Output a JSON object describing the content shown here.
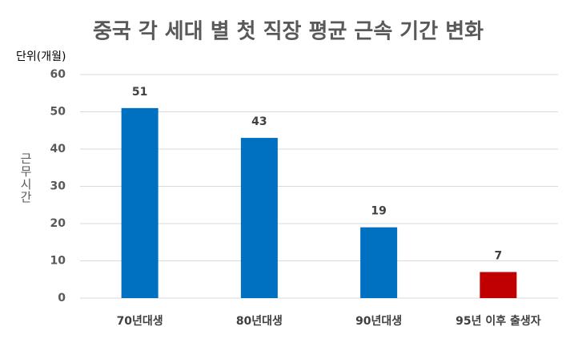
{
  "chart_data": {
    "type": "bar",
    "title": "중국 각 세대 별 첫 직장 평균 근속 기간 변화",
    "unit_label": "단위(개월)",
    "y_label": "근무시간",
    "categories": [
      "70년대생",
      "80년대생",
      "90년대생",
      "95년 이후 출생자"
    ],
    "values": [
      51,
      43,
      19,
      7
    ],
    "colors": [
      "#0070c0",
      "#0070c0",
      "#0070c0",
      "#c00000"
    ],
    "ylim": [
      0,
      60
    ],
    "yticks": [
      0,
      10,
      20,
      30,
      40,
      50,
      60
    ],
    "grid": true
  }
}
